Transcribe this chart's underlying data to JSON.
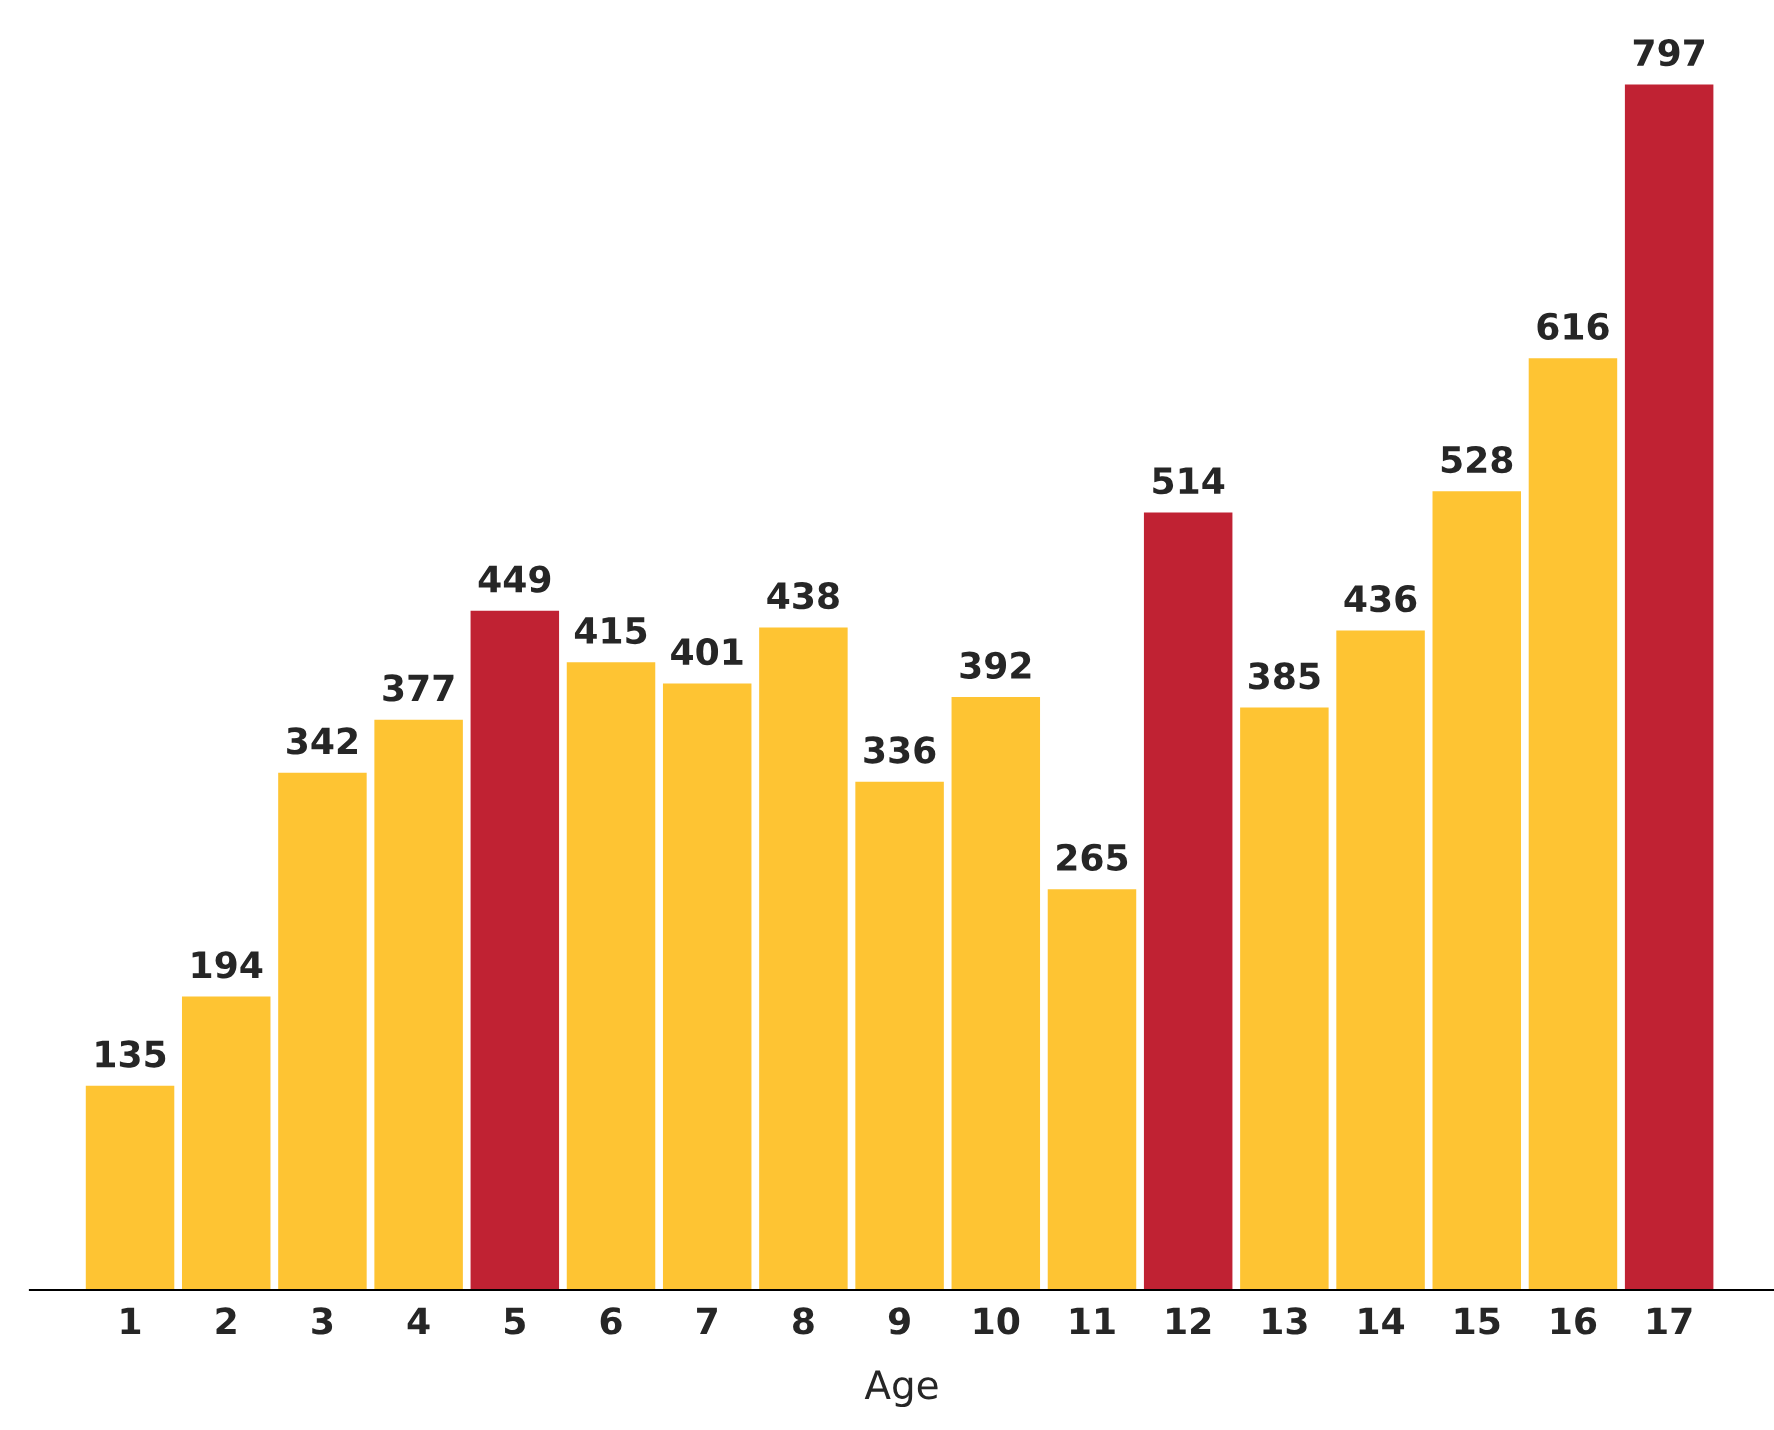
{
  "chart_data": {
    "type": "bar",
    "xlabel": "Age",
    "categories": [
      "1",
      "2",
      "3",
      "4",
      "5",
      "6",
      "7",
      "8",
      "9",
      "10",
      "11",
      "12",
      "13",
      "14",
      "15",
      "16",
      "17"
    ],
    "values": [
      135,
      194,
      342,
      377,
      449,
      415,
      401,
      438,
      336,
      392,
      265,
      514,
      385,
      436,
      528,
      616,
      797
    ],
    "colors": [
      "#fec433",
      "#fec433",
      "#fec433",
      "#fec433",
      "#c02233",
      "#fec433",
      "#fec433",
      "#fec433",
      "#fec433",
      "#fec433",
      "#fec433",
      "#c02233",
      "#fec433",
      "#fec433",
      "#fec433",
      "#fec433",
      "#c02233"
    ],
    "data_labels": true,
    "grid": false,
    "legend": false
  }
}
